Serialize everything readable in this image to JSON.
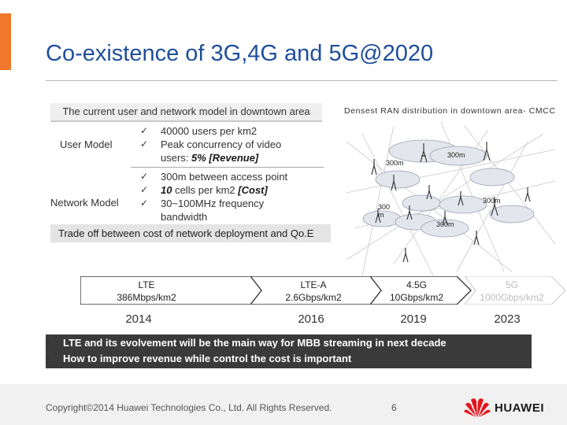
{
  "slide": {
    "title": "Co-existence of 3G,4G and 5G@2020",
    "accent_color": "#f0772b",
    "title_color": "#1f4e9a"
  },
  "table": {
    "header": "The current user and network model in downtown area",
    "user_model": {
      "label": "User Model",
      "line1": "40000 users per km2",
      "line2": "Peak concurrency of video",
      "line3_plain": "users: ",
      "line3_em": "5%  [Revenue]"
    },
    "network_model": {
      "label": "Network Model",
      "line1": "300m between access point",
      "line2_em": "10",
      "line2_plain": " cells per km2 ",
      "line2_em2": "[Cost]",
      "line3": "30~100MHz frequency",
      "line4": "bandwidth"
    },
    "tradeoff": "Trade off between cost of network deployment and Qo.E",
    "check_glyph": "✓"
  },
  "diagram": {
    "title": "Densest RAN distribution in downtown  area- CMCC",
    "distance_labels": [
      "300m",
      "300m",
      "300m",
      "300",
      "m",
      "300m"
    ]
  },
  "timeline": [
    {
      "tech": "LTE",
      "rate": "386Mbps/km2",
      "year": "2014"
    },
    {
      "tech": "LTE-A",
      "rate": "2.6Gbps/km2",
      "year": "2016"
    },
    {
      "tech": "4.5G",
      "rate": "10Gbps/km2",
      "year": "2019"
    },
    {
      "tech": "5G",
      "rate": "1000Gbps/km2",
      "year": "2023"
    }
  ],
  "conclusions": [
    "LTE and its evolvement will be the main way for MBB streaming in next decade",
    "How to improve revenue while control the cost is important"
  ],
  "footer": {
    "copyright": "Copyright©2014 Huawei Technologies Co., Ltd. All Rights Reserved.",
    "page": "6",
    "logo_text": "HUAWEI",
    "logo_color": "#e3161e"
  }
}
